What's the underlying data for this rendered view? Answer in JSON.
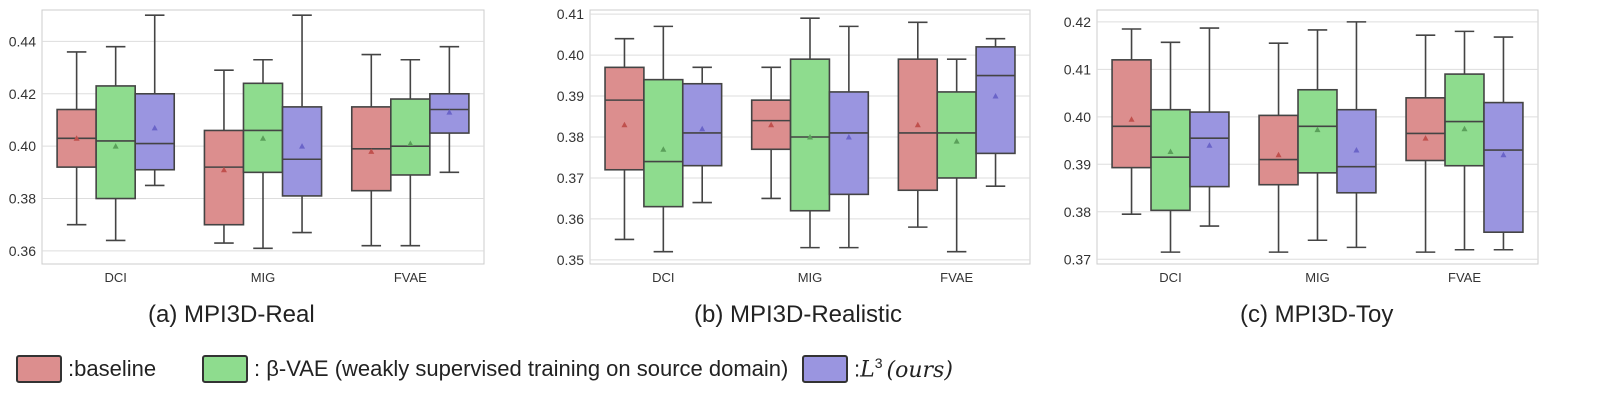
{
  "chart_data": [
    {
      "type": "box",
      "title": "(a) MPI3D-Real",
      "categories": [
        "DCI",
        "MIG",
        "FVAE"
      ],
      "ylim": [
        0.355,
        0.452
      ],
      "yticks": [
        "0.36",
        "0.38",
        "0.40",
        "0.42",
        "0.44"
      ],
      "ytick_values": [
        0.36,
        0.38,
        0.4,
        0.42,
        0.44
      ],
      "series": [
        {
          "name": "baseline",
          "boxes": [
            {
              "min": 0.37,
              "q1": 0.392,
              "median": 0.403,
              "q3": 0.414,
              "max": 0.436,
              "mean": 0.403
            },
            {
              "min": 0.363,
              "q1": 0.37,
              "median": 0.392,
              "q3": 0.406,
              "max": 0.429,
              "mean": 0.391
            },
            {
              "min": 0.362,
              "q1": 0.383,
              "median": 0.399,
              "q3": 0.415,
              "max": 0.435,
              "mean": 0.398
            }
          ]
        },
        {
          "name": "β-VAE",
          "boxes": [
            {
              "min": 0.364,
              "q1": 0.38,
              "median": 0.402,
              "q3": 0.423,
              "max": 0.438,
              "mean": 0.4
            },
            {
              "min": 0.361,
              "q1": 0.39,
              "median": 0.406,
              "q3": 0.424,
              "max": 0.433,
              "mean": 0.403
            },
            {
              "min": 0.362,
              "q1": 0.389,
              "median": 0.4,
              "q3": 0.418,
              "max": 0.433,
              "mean": 0.401
            }
          ]
        },
        {
          "name": "L3 (ours)",
          "boxes": [
            {
              "min": 0.385,
              "q1": 0.391,
              "median": 0.401,
              "q3": 0.42,
              "max": 0.45,
              "mean": 0.407
            },
            {
              "min": 0.367,
              "q1": 0.381,
              "median": 0.395,
              "q3": 0.415,
              "max": 0.45,
              "mean": 0.4
            },
            {
              "min": 0.39,
              "q1": 0.405,
              "median": 0.414,
              "q3": 0.42,
              "max": 0.438,
              "mean": 0.413
            }
          ]
        }
      ]
    },
    {
      "type": "box",
      "title": "(b) MPI3D-Realistic",
      "categories": [
        "DCI",
        "MIG",
        "FVAE"
      ],
      "ylim": [
        0.349,
        0.411
      ],
      "yticks": [
        "0.35",
        "0.36",
        "0.37",
        "0.38",
        "0.39",
        "0.40",
        "0.41"
      ],
      "ytick_values": [
        0.35,
        0.36,
        0.37,
        0.38,
        0.39,
        0.4,
        0.41
      ],
      "series": [
        {
          "name": "baseline",
          "boxes": [
            {
              "min": 0.355,
              "q1": 0.372,
              "median": 0.389,
              "q3": 0.397,
              "max": 0.404,
              "mean": 0.383
            },
            {
              "min": 0.365,
              "q1": 0.377,
              "median": 0.384,
              "q3": 0.389,
              "max": 0.397,
              "mean": 0.383
            },
            {
              "min": 0.358,
              "q1": 0.367,
              "median": 0.381,
              "q3": 0.399,
              "max": 0.408,
              "mean": 0.383
            }
          ]
        },
        {
          "name": "β-VAE",
          "boxes": [
            {
              "min": 0.352,
              "q1": 0.363,
              "median": 0.374,
              "q3": 0.394,
              "max": 0.407,
              "mean": 0.377
            },
            {
              "min": 0.353,
              "q1": 0.362,
              "median": 0.38,
              "q3": 0.399,
              "max": 0.409,
              "mean": 0.38
            },
            {
              "min": 0.352,
              "q1": 0.37,
              "median": 0.381,
              "q3": 0.391,
              "max": 0.399,
              "mean": 0.379
            }
          ]
        },
        {
          "name": "L3 (ours)",
          "boxes": [
            {
              "min": 0.364,
              "q1": 0.373,
              "median": 0.381,
              "q3": 0.393,
              "max": 0.397,
              "mean": 0.382
            },
            {
              "min": 0.353,
              "q1": 0.366,
              "median": 0.381,
              "q3": 0.391,
              "max": 0.407,
              "mean": 0.38
            },
            {
              "min": 0.368,
              "q1": 0.376,
              "median": 0.395,
              "q3": 0.402,
              "max": 0.404,
              "mean": 0.39
            }
          ]
        }
      ]
    },
    {
      "type": "box",
      "title": "(c) MPI3D-Toy",
      "categories": [
        "DCI",
        "MIG",
        "FVAE"
      ],
      "ylim": [
        0.369,
        0.4225
      ],
      "yticks": [
        "0.37",
        "0.38",
        "0.39",
        "0.40",
        "0.41",
        "0.42"
      ],
      "ytick_values": [
        0.37,
        0.38,
        0.39,
        0.4,
        0.41,
        0.42
      ],
      "series": [
        {
          "name": "baseline",
          "boxes": [
            {
              "min": 0.3795,
              "q1": 0.3893,
              "median": 0.398,
              "q3": 0.412,
              "max": 0.4185,
              "mean": 0.3995
            },
            {
              "min": 0.3715,
              "q1": 0.3857,
              "median": 0.391,
              "q3": 0.4003,
              "max": 0.4155,
              "mean": 0.392
            },
            {
              "min": 0.3715,
              "q1": 0.3908,
              "median": 0.3965,
              "q3": 0.404,
              "max": 0.4172,
              "mean": 0.3955
            }
          ]
        },
        {
          "name": "β-VAE",
          "boxes": [
            {
              "min": 0.3715,
              "q1": 0.3803,
              "median": 0.3915,
              "q3": 0.4015,
              "max": 0.4157,
              "mean": 0.3927
            },
            {
              "min": 0.374,
              "q1": 0.3882,
              "median": 0.398,
              "q3": 0.4057,
              "max": 0.4183,
              "mean": 0.3973
            },
            {
              "min": 0.372,
              "q1": 0.3897,
              "median": 0.399,
              "q3": 0.409,
              "max": 0.418,
              "mean": 0.3975
            }
          ]
        },
        {
          "name": "L3 (ours)",
          "boxes": [
            {
              "min": 0.377,
              "q1": 0.3853,
              "median": 0.3955,
              "q3": 0.401,
              "max": 0.4187,
              "mean": 0.394
            },
            {
              "min": 0.3725,
              "q1": 0.384,
              "median": 0.3895,
              "q3": 0.4015,
              "max": 0.42,
              "mean": 0.393
            },
            {
              "min": 0.372,
              "q1": 0.3757,
              "median": 0.393,
              "q3": 0.403,
              "max": 0.4168,
              "mean": 0.392
            }
          ]
        }
      ]
    }
  ],
  "legend": {
    "baseline_label": ":baseline",
    "beta_vae_label": ": β-VAE (weakly supervised training on source domain)",
    "l3_prefix": ":",
    "l3_letter": "L",
    "l3_superscript": "3",
    "l3_suffix": "(ours)"
  },
  "colors": {
    "baseline": "#dc8e8e",
    "beta_vae": "#8edc8e",
    "l3": "#9a95e0",
    "baseline_mean": "#c0504d",
    "beta_vae_mean": "#5aa05a",
    "l3_mean": "#6a64c8",
    "grid": "#dddddd",
    "edge": "#444444"
  }
}
